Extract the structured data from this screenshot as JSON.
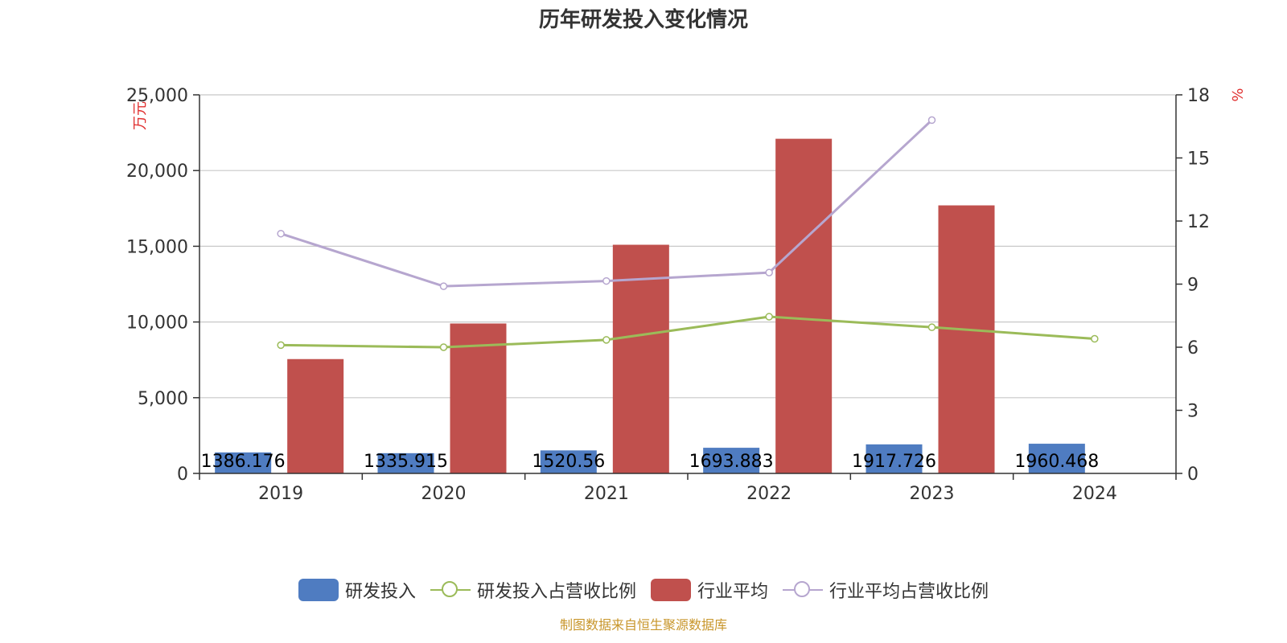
{
  "title": "历年研发投入变化情况",
  "source": "制图数据来自恒生聚源数据库",
  "colors": {
    "rd": "#4f7cc1",
    "industry": "#c0504d",
    "rd_ratio": "#9bbb59",
    "industry_ratio": "#b6a6cf",
    "grid": "#c8c8c8",
    "unit": "#e03030"
  },
  "chart_data": {
    "type": "bar",
    "categories": [
      "2019",
      "2020",
      "2021",
      "2022",
      "2023",
      "2024"
    ],
    "y_left": {
      "label": "万元",
      "range": [
        0,
        25000
      ],
      "ticks": [
        "0",
        "5,000",
        "10,000",
        "15,000",
        "20,000",
        "25,000"
      ]
    },
    "y_right": {
      "label": "%",
      "range": [
        0,
        18
      ],
      "ticks": [
        "0",
        "3",
        "6",
        "9",
        "12",
        "15",
        "18"
      ]
    },
    "grid": true,
    "legend_position": "bottom",
    "series": [
      {
        "name": "研发投入",
        "type": "bar",
        "axis": "left",
        "values": [
          1386.176,
          1335.915,
          1520.56,
          1693.883,
          1917.726,
          1960.468
        ],
        "labels": [
          "1386.176",
          "1335.915",
          "1520.56",
          "1693.883",
          "1917.726",
          "1960.468"
        ]
      },
      {
        "name": "研发投入占营收比例",
        "type": "line",
        "axis": "right",
        "values": [
          6.1,
          6.0,
          6.35,
          7.45,
          6.95,
          6.4
        ]
      },
      {
        "name": "行业平均",
        "type": "bar",
        "axis": "left",
        "values": [
          7550,
          9900,
          15100,
          22100,
          17700,
          null
        ]
      },
      {
        "name": "行业平均占营收比例",
        "type": "line",
        "axis": "right",
        "values": [
          11.4,
          8.9,
          9.15,
          9.55,
          16.8,
          null
        ]
      }
    ]
  }
}
